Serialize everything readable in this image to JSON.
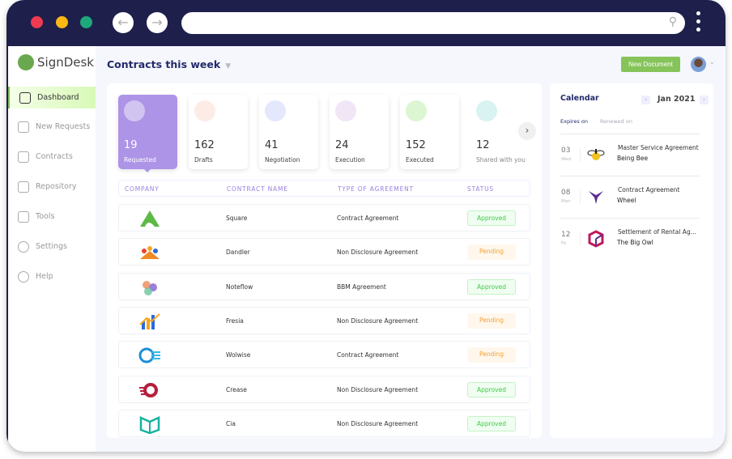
{
  "browser": {
    "traffic_colors": [
      "#ef3a4f",
      "#fbb814",
      "#1ea97c"
    ],
    "url": ""
  },
  "sidebar": {
    "brand": "SignDesk",
    "items": [
      {
        "label": "Dashboard",
        "active": true
      },
      {
        "label": "New Requests"
      },
      {
        "label": "Contracts"
      },
      {
        "label": "Repository"
      },
      {
        "label": "Tools"
      },
      {
        "label": "Settings"
      },
      {
        "label": "Help"
      }
    ]
  },
  "header": {
    "title": "Contracts this week",
    "new_document": "New Document"
  },
  "stats": [
    {
      "value": "19",
      "label": "Requested",
      "color": "#ad94e6"
    },
    {
      "value": "162",
      "label": "Drafts",
      "color": "#fdece6"
    },
    {
      "value": "41",
      "label": "Negotiation",
      "color": "#e3e8fd"
    },
    {
      "value": "24",
      "label": "Execution",
      "color": "#f1e6f5"
    },
    {
      "value": "152",
      "label": "Executed",
      "color": "#dcf5d2"
    },
    {
      "value": "12",
      "label": "Shared with you",
      "color": "#d9f3f2"
    }
  ],
  "table": {
    "headers": [
      "COMPANY",
      "CONTRACT NAME",
      "TYPE OF AGREEMENT",
      "STATUS"
    ],
    "rows": [
      {
        "company_logo": "square-logo",
        "name": "Square",
        "type": "Contract Agreement",
        "status": "Approved"
      },
      {
        "company_logo": "dandler-logo",
        "name": "Dandler",
        "type": "Non Disclosure Agreement",
        "status": "Pending"
      },
      {
        "company_logo": "noteflow-logo",
        "name": "Noteflow",
        "type": "BBM Agreement",
        "status": "Approved"
      },
      {
        "company_logo": "fresia-logo",
        "name": "Fresia",
        "type": "Non Disclosure Agreement",
        "status": "Pending"
      },
      {
        "company_logo": "wolwise-logo",
        "name": "Wolwise",
        "type": "Contract Agreement",
        "status": "Pending"
      },
      {
        "company_logo": "crease-logo",
        "name": "Crease",
        "type": "Non Disclosure Agreement",
        "status": "Approved"
      },
      {
        "company_logo": "cia-logo",
        "name": "Cia",
        "type": "Non Disclosure Agreement",
        "status": "Approved"
      }
    ]
  },
  "calendar": {
    "title": "Calendar",
    "month": "Jan 2021",
    "tabs": [
      "Expires on",
      "Renewed on"
    ],
    "events": [
      {
        "day": "03",
        "weekday": "Wed",
        "title": "Master Service Agreement",
        "company": "Being Bee"
      },
      {
        "day": "08",
        "weekday": "Mon",
        "title": "Contract Agreement",
        "company": "Wheel"
      },
      {
        "day": "12",
        "weekday": "Fri",
        "title": "Settlement of Rental Ag...",
        "company": "The Big Owl"
      }
    ]
  }
}
